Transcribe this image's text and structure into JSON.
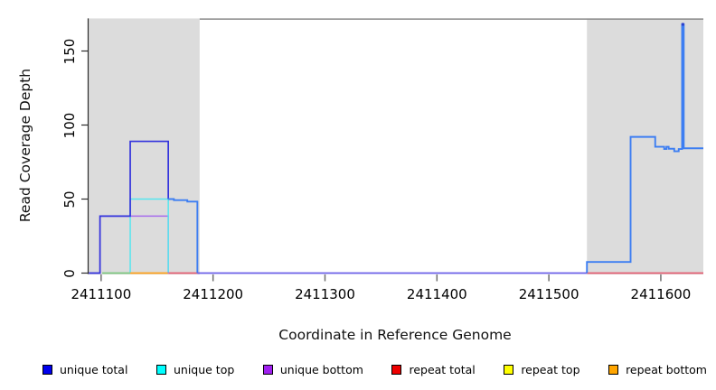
{
  "chart_data": {
    "type": "line",
    "title": "",
    "xlabel": "Coordinate in Reference Genome",
    "ylabel": "Read Coverage Depth",
    "x_ticks": [
      2411100,
      2411200,
      2411300,
      2411400,
      2411500,
      2411600
    ],
    "y_ticks": [
      0,
      50,
      100,
      150
    ],
    "xlim": [
      2411088,
      2411638
    ],
    "ylim": [
      0,
      172
    ],
    "grid": false,
    "legend_position": "bottom",
    "shaded_regions": [
      {
        "name": "left-shaded-region",
        "start": 2411088,
        "end": 2411188,
        "color": "#DCDCDC"
      },
      {
        "name": "right-shaded-region",
        "start": 2411534,
        "end": 2411638,
        "color": "#DCDCDC"
      }
    ],
    "top_boundary_line": {
      "start": 2411188,
      "end": 2411638,
      "depth": 171.6,
      "color": "#8A8A8A",
      "width": 1.5
    },
    "series": [
      {
        "name": "unique-bottom",
        "legend": "unique bottom",
        "color": "#A66CEC",
        "width": 1.5,
        "points": [
          [
            2411089,
            0
          ],
          [
            2411099,
            0
          ],
          [
            2411099,
            38.5
          ],
          [
            2411160,
            38.5
          ],
          [
            2411160,
            0
          ]
        ]
      },
      {
        "name": "unique-top",
        "legend": "unique top",
        "color": "#55E6EF",
        "width": 1.5,
        "points": [
          [
            2411126,
            0.5
          ],
          [
            2411126,
            50
          ],
          [
            2411160,
            50
          ],
          [
            2411160,
            0.5
          ]
        ]
      },
      {
        "name": "unique-total-left",
        "legend": "unique total",
        "color": "#3333DD",
        "width": 1.7,
        "points": [
          [
            2411089,
            0
          ],
          [
            2411099,
            0
          ],
          [
            2411099,
            38.5
          ],
          [
            2411126,
            38.5
          ],
          [
            2411126,
            89
          ],
          [
            2411160,
            89
          ],
          [
            2411160,
            50
          ]
        ]
      },
      {
        "name": "unique-total-tail",
        "legend": "unique total",
        "color": "#3D7EF2",
        "width": 1.9,
        "points": [
          [
            2411160,
            50
          ],
          [
            2411165,
            50
          ],
          [
            2411165,
            49.3
          ],
          [
            2411177,
            49.3
          ],
          [
            2411177,
            48.3
          ],
          [
            2411186,
            48.3
          ],
          [
            2411186,
            0
          ]
        ]
      },
      {
        "name": "unique-total-baseline",
        "legend": "unique total",
        "color": "#6A5FE8",
        "width": 1.8,
        "points": [
          [
            2411186,
            0
          ],
          [
            2411534,
            0
          ]
        ]
      },
      {
        "name": "unique-total-right",
        "legend": "unique total",
        "color": "#3D7EF2",
        "width": 1.9,
        "points": [
          [
            2411534,
            0
          ],
          [
            2411534,
            7.5
          ],
          [
            2411573,
            7.5
          ],
          [
            2411573,
            92
          ],
          [
            2411595,
            92
          ],
          [
            2411595,
            85.3
          ],
          [
            2411603,
            85.3
          ],
          [
            2411603,
            83.8
          ],
          [
            2411605,
            83.8
          ],
          [
            2411605,
            85.3
          ],
          [
            2411607,
            85.3
          ],
          [
            2411607,
            84
          ],
          [
            2411612,
            84
          ],
          [
            2411612,
            82.3
          ],
          [
            2411616,
            82.3
          ],
          [
            2411616,
            83.8
          ],
          [
            2411619,
            83.8
          ],
          [
            2411619,
            168
          ],
          [
            2411620.5,
            168
          ],
          [
            2411620.5,
            84.3
          ],
          [
            2411638,
            84.3
          ]
        ]
      }
    ],
    "spike_marker": {
      "coord": 2411619.7,
      "depth": 168,
      "color": "#2B3FCC"
    },
    "baseline_segments": [
      {
        "name": "baseline-green-overlap",
        "color": "#7CC87F",
        "from": 2411101,
        "to": 2411126
      },
      {
        "name": "baseline-repeat-bottom",
        "color": "#FFA018",
        "from": 2411126,
        "to": 2411160
      },
      {
        "name": "baseline-repeat-total-left",
        "color": "#E45D72",
        "from": 2411160,
        "to": 2411188
      },
      {
        "name": "baseline-repeat-total-right",
        "color": "#E45D72",
        "from": 2411534,
        "to": 2411638
      }
    ]
  },
  "axes": {
    "x_title": "Coordinate in Reference Genome",
    "y_title": "Read Coverage Depth",
    "axis_color": "#2b2b2b"
  },
  "legend": {
    "items": [
      {
        "label": "unique total",
        "color": "#0000EE"
      },
      {
        "label": "unique top",
        "color": "#00FFFF"
      },
      {
        "label": "unique bottom",
        "color": "#A020F0"
      },
      {
        "label": "repeat total",
        "color": "#EE0000"
      },
      {
        "label": "repeat top",
        "color": "#FFFF00"
      },
      {
        "label": "repeat bottom",
        "color": "#FFA500"
      }
    ]
  }
}
